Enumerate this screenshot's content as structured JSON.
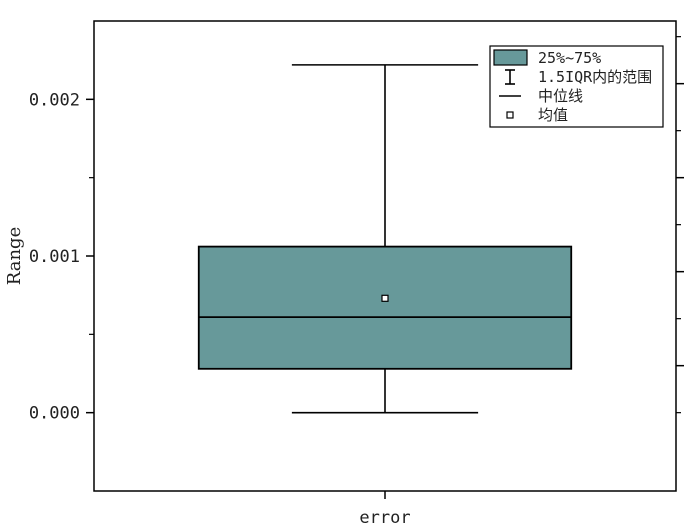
{
  "chart_data": {
    "type": "box",
    "ylabel": "Range",
    "xlabel": "",
    "ylim": [
      -0.0005,
      0.0025
    ],
    "yticks": [
      0.0,
      0.001,
      0.002
    ],
    "ytick_labels": [
      "0.000",
      "0.001",
      "0.002"
    ],
    "categories": [
      "error"
    ],
    "boxes": [
      {
        "category": "error",
        "whisker_low": 0.0,
        "q1": 0.00028,
        "median": 0.00061,
        "mean": 0.00073,
        "q3": 0.00106,
        "whisker_high": 0.00222
      }
    ],
    "legend": {
      "position": "top-right",
      "items": [
        {
          "key": "box",
          "label": "25%~75%"
        },
        {
          "key": "whisker",
          "label": "1.5IQR内的范围"
        },
        {
          "key": "median",
          "label": "中位线"
        },
        {
          "key": "mean",
          "label": "均值"
        }
      ]
    },
    "colors": {
      "box_fill": "#67999a",
      "stroke": "#000000"
    },
    "grid": false
  }
}
